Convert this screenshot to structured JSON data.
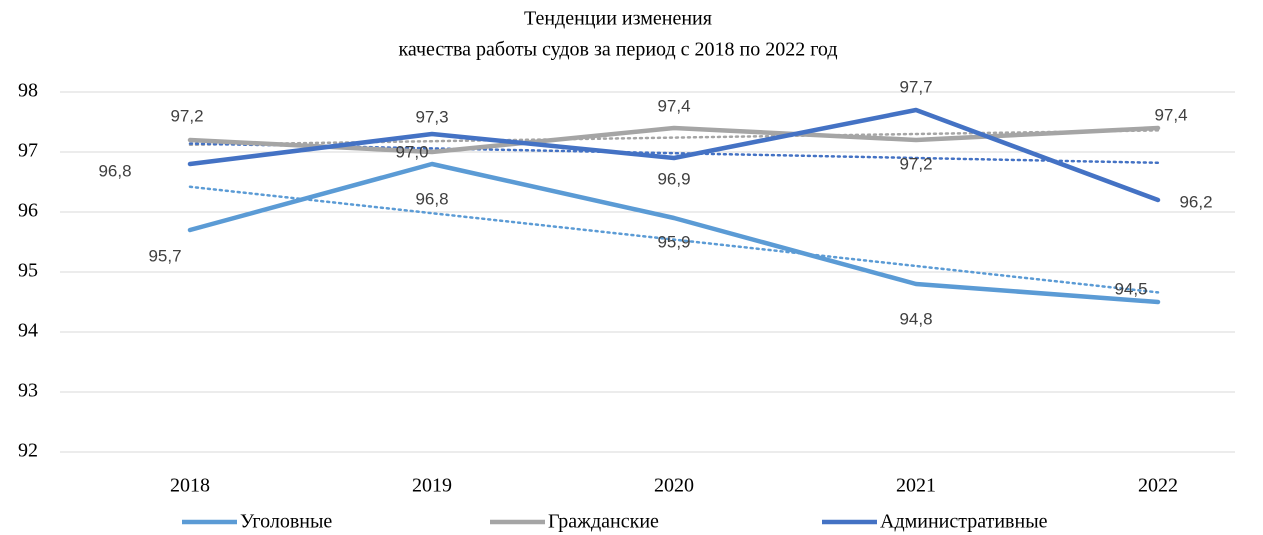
{
  "chart_data": {
    "type": "line",
    "title": [
      "Тенденции изменения",
      "качества работы судов за период с 2018 по 2022 год"
    ],
    "categories": [
      "2018",
      "2019",
      "2020",
      "2021",
      "2022"
    ],
    "series": [
      {
        "name": "Уголовные",
        "color": "#5b9bd5",
        "values": [
          95.7,
          96.8,
          95.9,
          94.8,
          94.5
        ],
        "value_labels": [
          "95,7",
          "96,8",
          "95,9",
          "94,8",
          "94,5"
        ],
        "trendline": true
      },
      {
        "name": "Гражданские",
        "color": "#a5a5a5",
        "values": [
          97.2,
          97.0,
          97.4,
          97.2,
          97.4
        ],
        "value_labels": [
          "97,2",
          "97,0",
          "97,4",
          "97,2",
          "97,4"
        ],
        "trendline": true
      },
      {
        "name": "Административные",
        "color": "#4472c4",
        "values": [
          96.8,
          97.3,
          96.9,
          97.7,
          96.2
        ],
        "value_labels": [
          "96,8",
          "97,3",
          "96,9",
          "97,7",
          "96,2"
        ],
        "trendline": true
      }
    ],
    "ylim": [
      92,
      98
    ],
    "yticks": [
      92,
      93,
      94,
      95,
      96,
      97,
      98
    ],
    "grid": true,
    "legend": "bottom"
  }
}
